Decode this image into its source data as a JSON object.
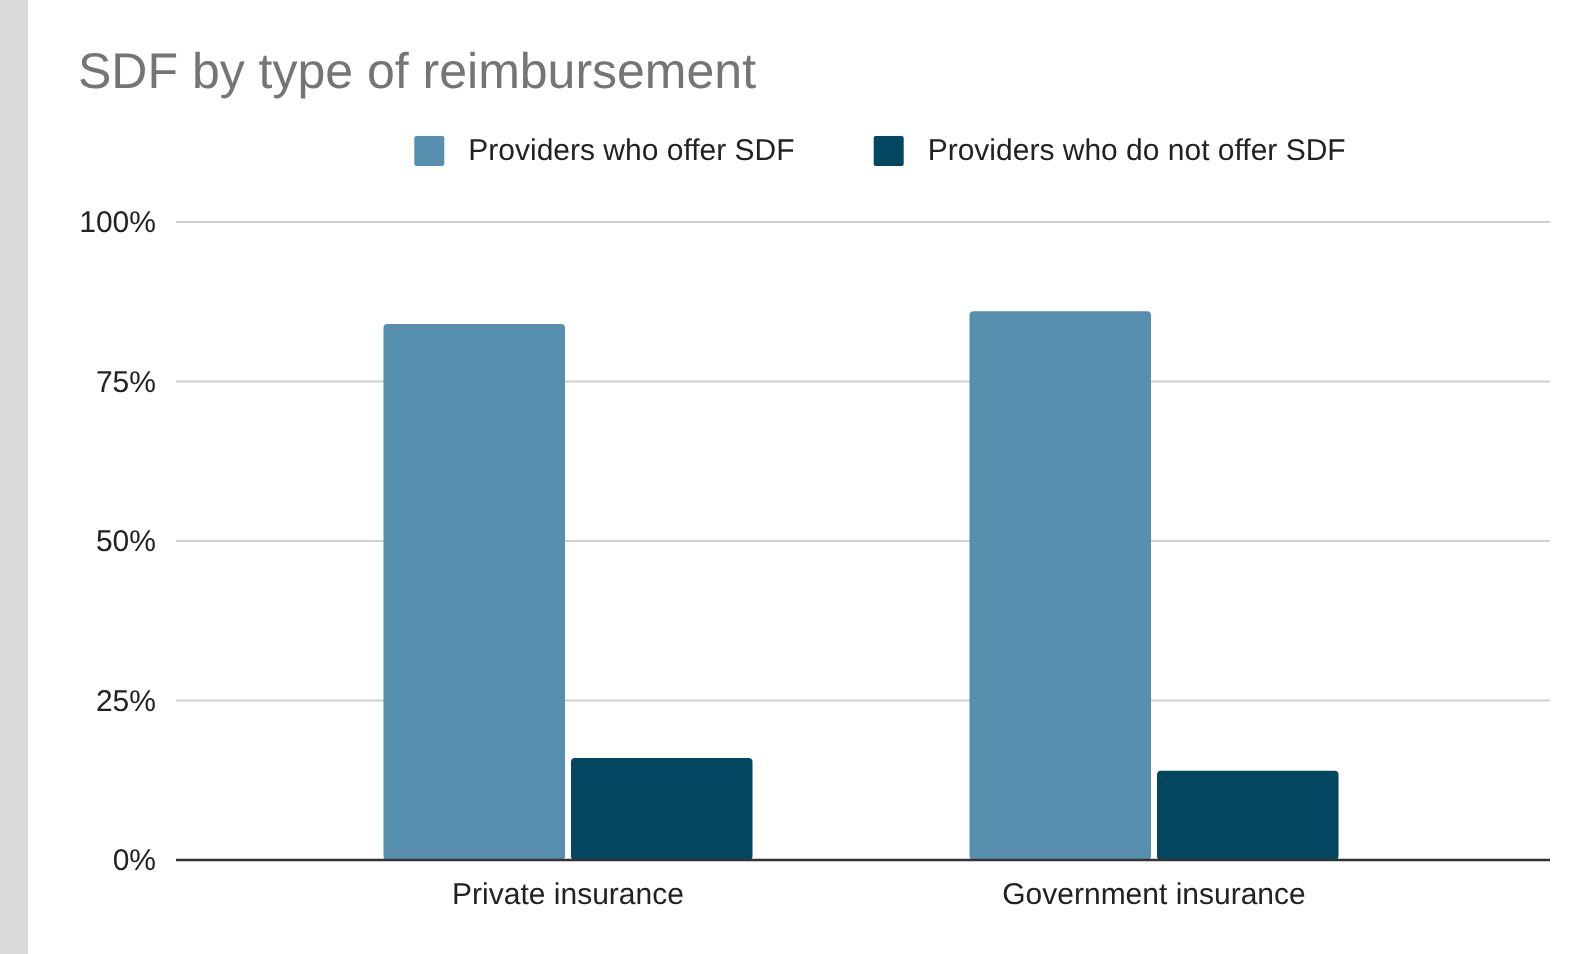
{
  "chart_data": {
    "type": "bar",
    "title": "SDF by type of reimbursement",
    "categories": [
      "Private insurance",
      "Government insurance"
    ],
    "series": [
      {
        "name": "Providers who offer SDF",
        "color": "#5790af",
        "values": [
          84,
          86
        ]
      },
      {
        "name": "Providers who do not offer SDF",
        "color": "#03465f",
        "values": [
          16,
          14
        ]
      }
    ],
    "ylim": [
      0,
      100
    ],
    "yticks": [
      {
        "value": 0,
        "label": "0%"
      },
      {
        "value": 25,
        "label": "25%"
      },
      {
        "value": 50,
        "label": "50%"
      },
      {
        "value": 75,
        "label": "75%"
      },
      {
        "value": 100,
        "label": "100%"
      }
    ],
    "grid": "y",
    "legend": "top"
  }
}
